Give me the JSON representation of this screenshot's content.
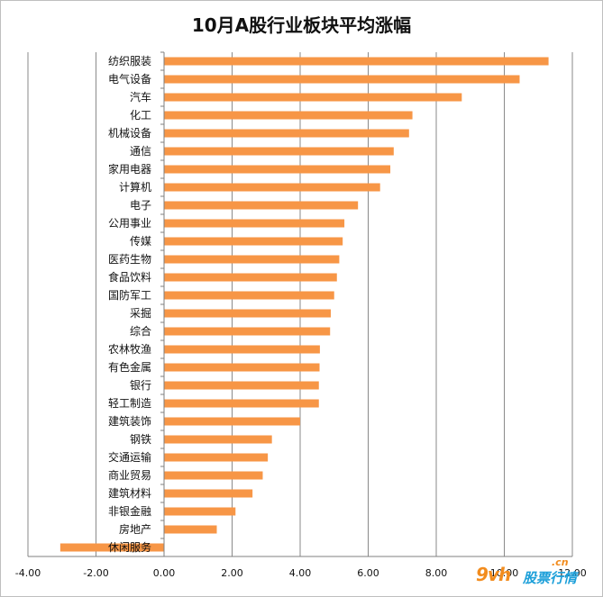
{
  "chart_data": {
    "type": "bar",
    "orientation": "horizontal",
    "title": "10月A股行业板块平均涨幅",
    "categories": [
      "纺织服装",
      "电气设备",
      "汽车",
      "化工",
      "机械设备",
      "通信",
      "家用电器",
      "计算机",
      "电子",
      "公用事业",
      "传媒",
      "医药生物",
      "食品饮料",
      "国防军工",
      "采掘",
      "综合",
      "农林牧渔",
      "有色金属",
      "银行",
      "轻工制造",
      "建筑装饰",
      "钢铁",
      "交通运输",
      "商业贸易",
      "建筑材料",
      "非银金融",
      "房地产",
      "休闲服务"
    ],
    "values": [
      11.3,
      10.45,
      8.75,
      7.3,
      7.2,
      6.75,
      6.65,
      6.35,
      5.7,
      5.3,
      5.25,
      5.15,
      5.08,
      5.0,
      4.9,
      4.88,
      4.58,
      4.57,
      4.55,
      4.55,
      4.0,
      3.17,
      3.05,
      2.9,
      2.6,
      2.1,
      1.55,
      -3.05
    ],
    "xlim": [
      -4,
      12
    ],
    "x_ticks": [
      "-4.00",
      "-2.00",
      "0.00",
      "2.00",
      "4.00",
      "6.00",
      "8.00",
      "10.00",
      "12.00"
    ],
    "grid": "vertical",
    "legend": "none",
    "bar_color": "#f79646"
  },
  "watermark": {
    "main": "9vh",
    "suffix": ".cn",
    "sub": "股票行情"
  }
}
